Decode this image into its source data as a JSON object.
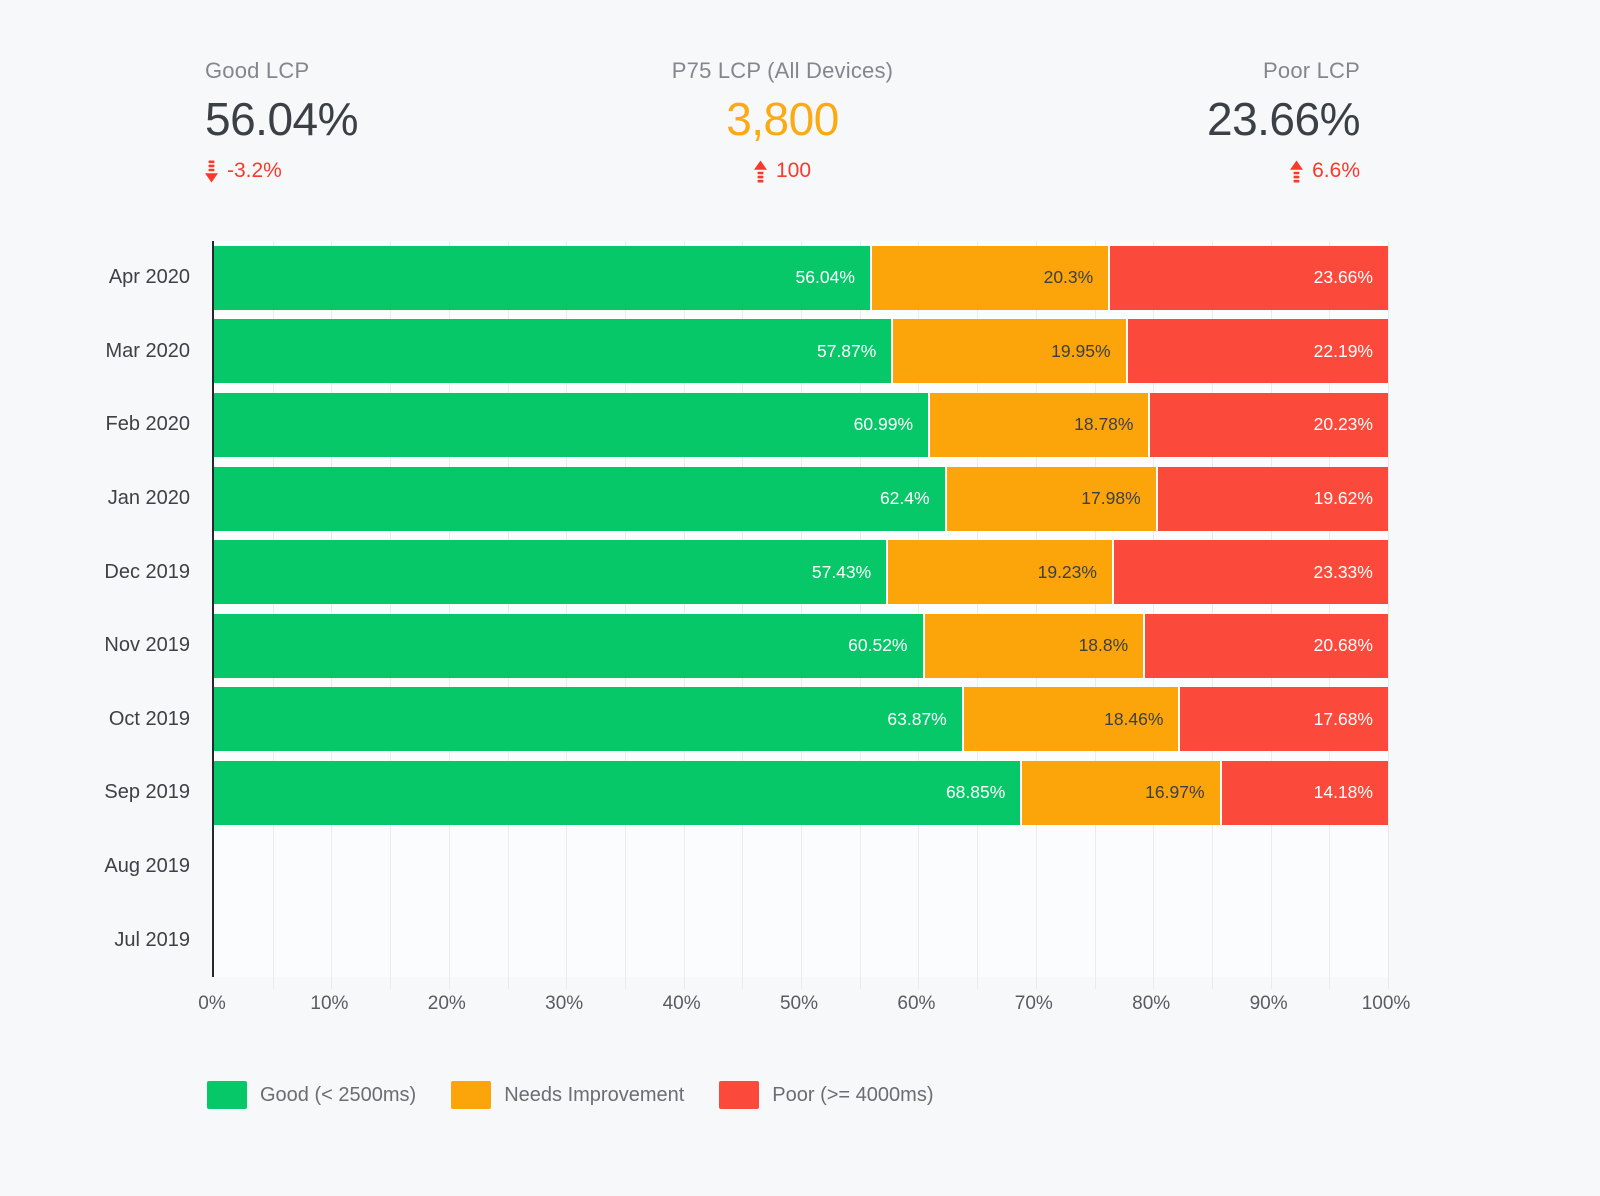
{
  "kpis": [
    {
      "label": "Good LCP",
      "value": "56.04%",
      "delta": "-3.2%",
      "direction": "down",
      "value_color": "#3b3f46"
    },
    {
      "label": "P75 LCP (All Devices)",
      "value": "3,800",
      "delta": "100",
      "direction": "up",
      "value_color": "#fbaa13"
    },
    {
      "label": "Poor LCP",
      "value": "23.66%",
      "delta": "6.6%",
      "direction": "up",
      "value_color": "#3b3f46"
    }
  ],
  "delta_color": "#f8392b",
  "chart_data": {
    "type": "bar",
    "orientation": "horizontal",
    "stacked": true,
    "categories": [
      "Apr 2020",
      "Mar 2020",
      "Feb 2020",
      "Jan 2020",
      "Dec 2019",
      "Nov 2019",
      "Oct 2019",
      "Sep 2019",
      "Aug 2019",
      "Jul 2019"
    ],
    "series": [
      {
        "name": "Good (< 2500ms)",
        "color": "#06c869",
        "label_color": "#ffffff",
        "values": [
          56.04,
          57.87,
          60.99,
          62.4,
          57.43,
          60.52,
          63.87,
          68.85,
          null,
          null
        ]
      },
      {
        "name": "Needs Improvement",
        "color": "#fca50a",
        "label_color": "#3c4043",
        "values": [
          20.3,
          19.95,
          18.78,
          17.98,
          19.23,
          18.8,
          18.46,
          16.97,
          null,
          null
        ]
      },
      {
        "name": "Poor (>= 4000ms)",
        "color": "#fb4a3b",
        "label_color": "#ffffff",
        "values": [
          23.66,
          22.19,
          20.23,
          19.62,
          23.33,
          20.68,
          17.68,
          14.18,
          null,
          null
        ]
      }
    ],
    "value_suffix": "%",
    "xlim": [
      0,
      100
    ],
    "x_ticks": [
      "0%",
      "10%",
      "20%",
      "30%",
      "40%",
      "50%",
      "60%",
      "70%",
      "80%",
      "90%",
      "100%"
    ],
    "grid_step_pct": 5,
    "grid": true,
    "legend_position": "bottom"
  }
}
